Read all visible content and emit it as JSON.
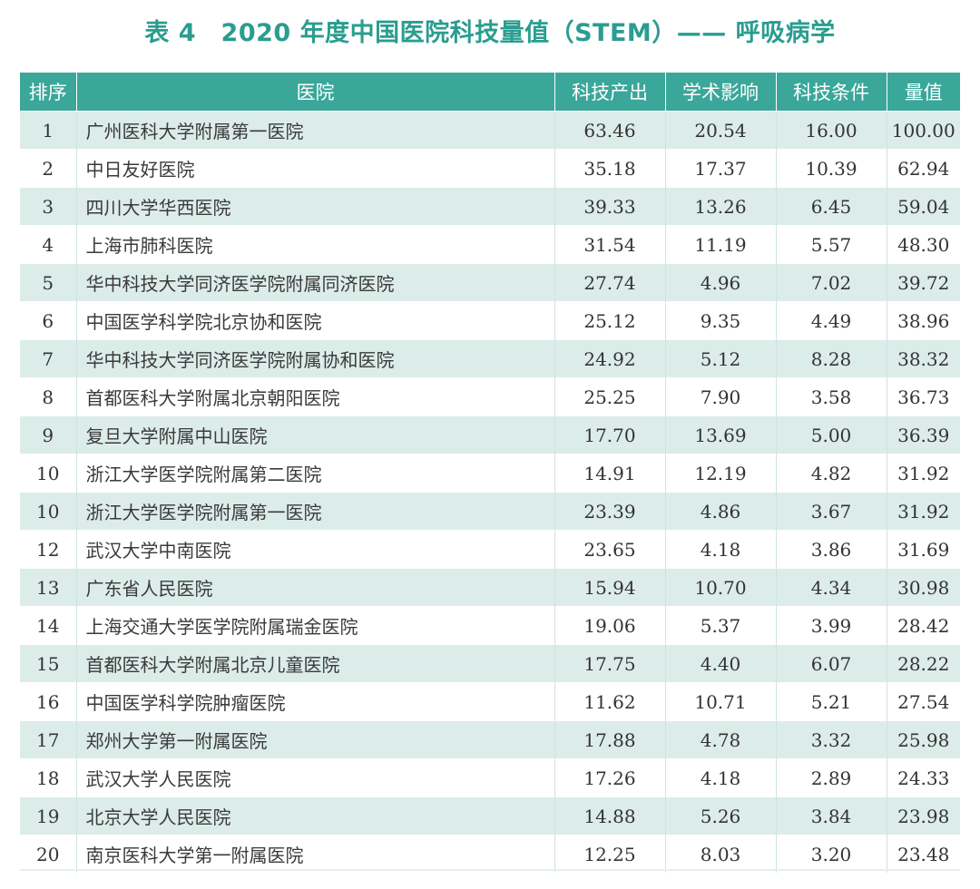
{
  "title": "表 4　2020 年度中国医院科技量值（STEM）—— 呼吸病学",
  "columns": {
    "rank": "排序",
    "hospital": "医院",
    "output": "科技产出",
    "influence": "学术影响",
    "conditions": "科技条件",
    "value": "量值"
  },
  "rows": [
    {
      "rank": "1",
      "hospital": "广州医科大学附属第一医院",
      "output": "63.46",
      "influence": "20.54",
      "conditions": "16.00",
      "value": "100.00"
    },
    {
      "rank": "2",
      "hospital": "中日友好医院",
      "output": "35.18",
      "influence": "17.37",
      "conditions": "10.39",
      "value": "62.94"
    },
    {
      "rank": "3",
      "hospital": "四川大学华西医院",
      "output": "39.33",
      "influence": "13.26",
      "conditions": "6.45",
      "value": "59.04"
    },
    {
      "rank": "4",
      "hospital": "上海市肺科医院",
      "output": "31.54",
      "influence": "11.19",
      "conditions": "5.57",
      "value": "48.30"
    },
    {
      "rank": "5",
      "hospital": "华中科技大学同济医学院附属同济医院",
      "output": "27.74",
      "influence": "4.96",
      "conditions": "7.02",
      "value": "39.72"
    },
    {
      "rank": "6",
      "hospital": "中国医学科学院北京协和医院",
      "output": "25.12",
      "influence": "9.35",
      "conditions": "4.49",
      "value": "38.96"
    },
    {
      "rank": "7",
      "hospital": "华中科技大学同济医学院附属协和医院",
      "output": "24.92",
      "influence": "5.12",
      "conditions": "8.28",
      "value": "38.32"
    },
    {
      "rank": "8",
      "hospital": "首都医科大学附属北京朝阳医院",
      "output": "25.25",
      "influence": "7.90",
      "conditions": "3.58",
      "value": "36.73"
    },
    {
      "rank": "9",
      "hospital": "复旦大学附属中山医院",
      "output": "17.70",
      "influence": "13.69",
      "conditions": "5.00",
      "value": "36.39"
    },
    {
      "rank": "10",
      "hospital": "浙江大学医学院附属第二医院",
      "output": "14.91",
      "influence": "12.19",
      "conditions": "4.82",
      "value": "31.92"
    },
    {
      "rank": "10",
      "hospital": "浙江大学医学院附属第一医院",
      "output": "23.39",
      "influence": "4.86",
      "conditions": "3.67",
      "value": "31.92"
    },
    {
      "rank": "12",
      "hospital": "武汉大学中南医院",
      "output": "23.65",
      "influence": "4.18",
      "conditions": "3.86",
      "value": "31.69"
    },
    {
      "rank": "13",
      "hospital": "广东省人民医院",
      "output": "15.94",
      "influence": "10.70",
      "conditions": "4.34",
      "value": "30.98"
    },
    {
      "rank": "14",
      "hospital": "上海交通大学医学院附属瑞金医院",
      "output": "19.06",
      "influence": "5.37",
      "conditions": "3.99",
      "value": "28.42"
    },
    {
      "rank": "15",
      "hospital": "首都医科大学附属北京儿童医院",
      "output": "17.75",
      "influence": "4.40",
      "conditions": "6.07",
      "value": "28.22"
    },
    {
      "rank": "16",
      "hospital": "中国医学科学院肿瘤医院",
      "output": "11.62",
      "influence": "10.71",
      "conditions": "5.21",
      "value": "27.54"
    },
    {
      "rank": "17",
      "hospital": "郑州大学第一附属医院",
      "output": "17.88",
      "influence": "4.78",
      "conditions": "3.32",
      "value": "25.98"
    },
    {
      "rank": "18",
      "hospital": "武汉大学人民医院",
      "output": "17.26",
      "influence": "4.18",
      "conditions": "2.89",
      "value": "24.33"
    },
    {
      "rank": "19",
      "hospital": "北京大学人民医院",
      "output": "14.88",
      "influence": "5.26",
      "conditions": "3.84",
      "value": "23.98"
    },
    {
      "rank": "20",
      "hospital": "南京医科大学第一附属医院",
      "output": "12.25",
      "influence": "8.03",
      "conditions": "3.20",
      "value": "23.48"
    }
  ],
  "colors": {
    "title": "#2a9d8f",
    "header_bg": "#3aa79a",
    "stripe": "#dcece9"
  }
}
